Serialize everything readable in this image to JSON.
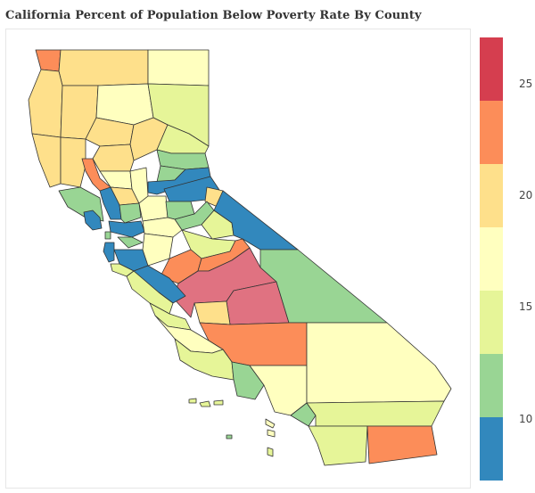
{
  "title": "California Percent of Population Below Poverty Rate By County",
  "legend": {
    "ticks": [
      "10",
      "15",
      "20",
      "25"
    ],
    "bins": [
      {
        "color": "#3288bd"
      },
      {
        "color": "#99d594"
      },
      {
        "color": "#e6f598"
      },
      {
        "color": "#ffffbf"
      },
      {
        "color": "#fee08b"
      },
      {
        "color": "#fc8d59"
      },
      {
        "color": "#d53e4f"
      }
    ]
  },
  "map": {
    "region": "California",
    "colors": {
      "low": "#3288bd",
      "low_mid": "#99d594",
      "mid_low": "#e6f598",
      "mid": "#ffffbf",
      "mid_high": "#fee08b",
      "high": "#fc8d59",
      "very_high": "#e07281"
    }
  }
}
